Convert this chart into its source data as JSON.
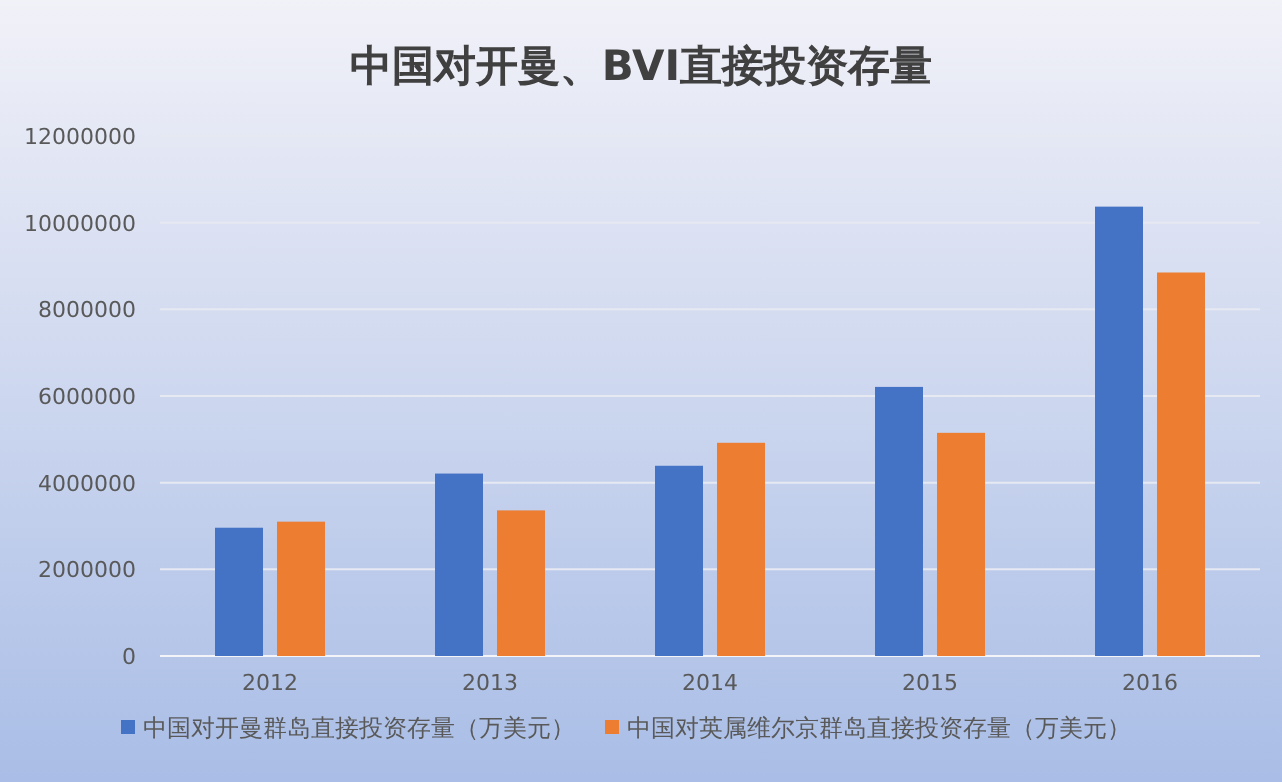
{
  "chart_data": {
    "type": "bar",
    "title": "中国对开曼、BVI直接投资存量",
    "categories": [
      "2012",
      "2013",
      "2014",
      "2015",
      "2016"
    ],
    "series": [
      {
        "name": "中国对开曼群岛直接投资存量（万美元）",
        "color": "#4472c4",
        "values": [
          2960000,
          4210000,
          4390000,
          6210000,
          10370000
        ]
      },
      {
        "name": "中国对英属维尔京群岛直接投资存量（万美元）",
        "color": "#ed7d31",
        "values": [
          3100000,
          3360000,
          4920000,
          5150000,
          8850000
        ]
      }
    ],
    "ylim": [
      0,
      12000000
    ],
    "yticks": [
      0,
      2000000,
      4000000,
      6000000,
      8000000,
      10000000,
      12000000
    ],
    "grid": "y",
    "legend": "bottom"
  }
}
